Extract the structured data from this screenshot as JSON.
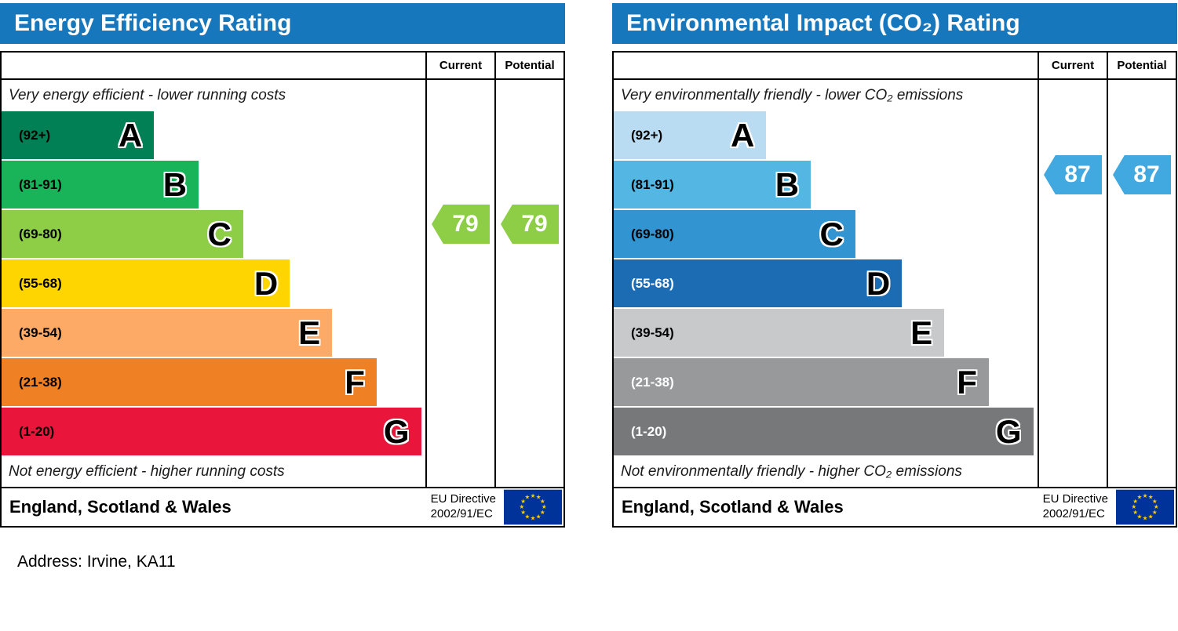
{
  "theme": {
    "header_bg": "#1777bd",
    "header_text": "#ffffff",
    "border": "#000000",
    "flag_bg": "#003399",
    "flag_star": "#ffcc00"
  },
  "address": {
    "label": "Address: Irvine, KA11"
  },
  "charts": [
    {
      "title": "Energy Efficiency Rating",
      "columns": {
        "current": "Current",
        "potential": "Potential"
      },
      "caption_top": "Very energy efficient - lower running costs",
      "caption_bottom": "Not energy efficient - higher running costs",
      "bands": [
        {
          "letter": "A",
          "range": "(92+)",
          "color": "#008054",
          "width_pct": 36,
          "range_color": "#000000"
        },
        {
          "letter": "B",
          "range": "(81-91)",
          "color": "#19b459",
          "width_pct": 46.5,
          "range_color": "#000000"
        },
        {
          "letter": "C",
          "range": "(69-80)",
          "color": "#8dce46",
          "width_pct": 57,
          "range_color": "#000000"
        },
        {
          "letter": "D",
          "range": "(55-68)",
          "color": "#ffd500",
          "width_pct": 68,
          "range_color": "#000000"
        },
        {
          "letter": "E",
          "range": "(39-54)",
          "color": "#fcaa65",
          "width_pct": 78,
          "range_color": "#000000"
        },
        {
          "letter": "F",
          "range": "(21-38)",
          "color": "#ef8023",
          "width_pct": 88.5,
          "range_color": "#000000"
        },
        {
          "letter": "G",
          "range": "(1-20)",
          "color": "#e9153b",
          "width_pct": 99,
          "range_color": "#000000"
        }
      ],
      "current": {
        "value": "79",
        "band_index": 2,
        "color": "#8dce46"
      },
      "potential": {
        "value": "79",
        "band_index": 2,
        "color": "#8dce46"
      },
      "footer": {
        "region": "England, Scotland & Wales",
        "directive_line1": "EU Directive",
        "directive_line2": "2002/91/EC"
      }
    },
    {
      "title": "Environmental Impact (CO₂) Rating",
      "columns": {
        "current": "Current",
        "potential": "Potential"
      },
      "caption_top": "Very environmentally friendly - lower CO₂ emissions",
      "caption_bottom": "Not environmentally friendly - higher CO₂ emissions",
      "bands": [
        {
          "letter": "A",
          "range": "(92+)",
          "color": "#b9dcf2",
          "width_pct": 36,
          "range_color": "#000000"
        },
        {
          "letter": "B",
          "range": "(81-91)",
          "color": "#54b6e3",
          "width_pct": 46.5,
          "range_color": "#000000"
        },
        {
          "letter": "C",
          "range": "(69-80)",
          "color": "#3295d2",
          "width_pct": 57,
          "range_color": "#000000"
        },
        {
          "letter": "D",
          "range": "(55-68)",
          "color": "#1c6cb4",
          "width_pct": 68,
          "range_color": "#ffffff"
        },
        {
          "letter": "E",
          "range": "(39-54)",
          "color": "#c8c9cb",
          "width_pct": 78,
          "range_color": "#000000"
        },
        {
          "letter": "F",
          "range": "(21-38)",
          "color": "#97999b",
          "width_pct": 88.5,
          "range_color": "#ffffff"
        },
        {
          "letter": "G",
          "range": "(1-20)",
          "color": "#76787a",
          "width_pct": 99,
          "range_color": "#ffffff"
        }
      ],
      "current": {
        "value": "87",
        "band_index": 1,
        "color": "#42a8e0"
      },
      "potential": {
        "value": "87",
        "band_index": 1,
        "color": "#42a8e0"
      },
      "footer": {
        "region": "England, Scotland & Wales",
        "directive_line1": "EU Directive",
        "directive_line2": "2002/91/EC"
      }
    }
  ],
  "chart_data": [
    {
      "type": "bar",
      "title": "Energy Efficiency Rating",
      "categories": [
        "A (92+)",
        "B (81-91)",
        "C (69-80)",
        "D (55-68)",
        "E (39-54)",
        "F (21-38)",
        "G (1-20)"
      ],
      "values": [
        36,
        46.5,
        57,
        68,
        78,
        88.5,
        99
      ],
      "scale_range": [
        1,
        100
      ],
      "current_rating": 79,
      "current_band": "C",
      "potential_rating": 79,
      "potential_band": "C",
      "top_caption": "Very energy efficient - lower running costs",
      "bottom_caption": "Not energy efficient - higher running costs",
      "region": "England, Scotland & Wales",
      "directive": "EU Directive 2002/91/EC"
    },
    {
      "type": "bar",
      "title": "Environmental Impact (CO₂) Rating",
      "categories": [
        "A (92+)",
        "B (81-91)",
        "C (69-80)",
        "D (55-68)",
        "E (39-54)",
        "F (21-38)",
        "G (1-20)"
      ],
      "values": [
        36,
        46.5,
        57,
        68,
        78,
        88.5,
        99
      ],
      "scale_range": [
        1,
        100
      ],
      "current_rating": 87,
      "current_band": "B",
      "potential_rating": 87,
      "potential_band": "B",
      "top_caption": "Very environmentally friendly - lower CO₂ emissions",
      "bottom_caption": "Not environmentally friendly - higher CO₂ emissions",
      "region": "England, Scotland & Wales",
      "directive": "EU Directive 2002/91/EC"
    }
  ]
}
